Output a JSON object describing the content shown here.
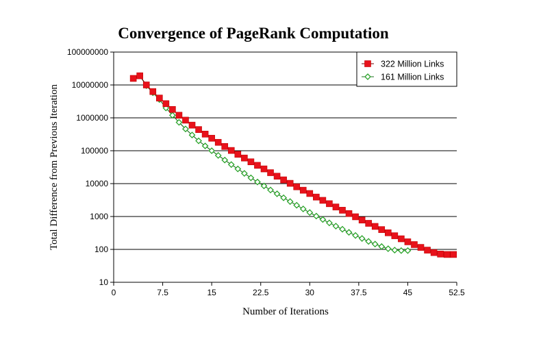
{
  "chart_data": {
    "type": "line",
    "title": "Convergence of PageRank Computation",
    "xlabel": "Number of Iterations",
    "ylabel": "Total Difference from Previous Iteration",
    "xlim": [
      0,
      52.5
    ],
    "ylim": [
      10,
      100000000
    ],
    "y_scale": "log",
    "x_ticks": [
      "0",
      "7.5",
      "15",
      "22.5",
      "30",
      "37.5",
      "45",
      "52.5"
    ],
    "y_ticks": [
      "100000000",
      "10000000",
      "1000000",
      "100000",
      "10000",
      "1000",
      "100",
      "10"
    ],
    "grid": "horizontal",
    "legend_position": "top-right",
    "series": [
      {
        "name": "322 Million Links",
        "color": "#e8121b",
        "marker": "square",
        "x": [
          3,
          4,
          5,
          6,
          7,
          8,
          9,
          10,
          11,
          12,
          13,
          14,
          15,
          16,
          17,
          18,
          19,
          20,
          21,
          22,
          23,
          24,
          25,
          26,
          27,
          28,
          29,
          30,
          31,
          32,
          33,
          34,
          35,
          36,
          37,
          38,
          39,
          40,
          41,
          42,
          43,
          44,
          45,
          46,
          47,
          48,
          49,
          50,
          51,
          52
        ],
        "y": [
          15800000,
          19000000,
          10000000,
          6300000,
          4000000,
          2700000,
          1800000,
          1200000,
          850000,
          600000,
          440000,
          320000,
          240000,
          180000,
          135000,
          102000,
          78000,
          60000,
          46000,
          36000,
          28000,
          21500,
          16800,
          13000,
          10200,
          8000,
          6300,
          5000,
          3900,
          3100,
          2450,
          1950,
          1550,
          1230,
          980,
          780,
          620,
          500,
          400,
          320,
          260,
          210,
          170,
          140,
          115,
          95,
          80,
          72,
          70,
          70
        ]
      },
      {
        "name": "161 Million Links",
        "color": "#2aa32a",
        "marker": "diamond-open",
        "x": [
          4,
          5,
          6,
          7,
          8,
          9,
          10,
          11,
          12,
          13,
          14,
          15,
          16,
          17,
          18,
          19,
          20,
          21,
          22,
          23,
          24,
          25,
          26,
          27,
          28,
          29,
          30,
          31,
          32,
          33,
          34,
          35,
          36,
          37,
          38,
          39,
          40,
          41,
          42,
          43,
          44,
          45
        ],
        "y": [
          19000000,
          9500000,
          5800000,
          3600000,
          2000000,
          1200000,
          730000,
          460000,
          300000,
          200000,
          140000,
          100000,
          72000,
          52000,
          38000,
          28000,
          20500,
          15000,
          11200,
          8500,
          6400,
          4900,
          3700,
          2850,
          2200,
          1700,
          1320,
          1030,
          810,
          640,
          510,
          410,
          330,
          265,
          215,
          175,
          145,
          122,
          105,
          95,
          92,
          92
        ]
      }
    ]
  }
}
